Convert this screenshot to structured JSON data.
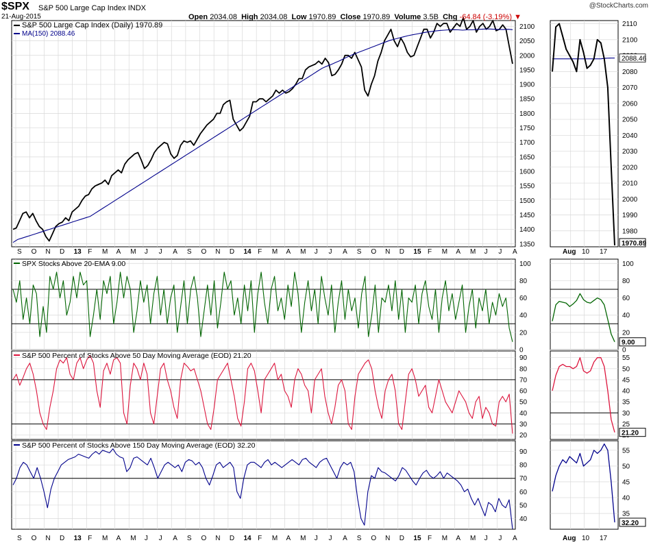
{
  "header": {
    "ticker": "$SPX",
    "name": "S&P 500 Large Cap Index",
    "exchange": "INDX",
    "date": "21-Aug-2015",
    "watermark": "@StockCharts.com",
    "open_label": "Open",
    "open": "2034.08",
    "high_label": "High",
    "high": "2034.08",
    "low_label": "Low",
    "low": "1970.89",
    "close_label": "Close",
    "close": "1970.89",
    "volume_label": "Volume",
    "volume": "3.5B",
    "chg_label": "Chg",
    "chg": "-64.84 (-3.19%)",
    "chg_arrow": "▼"
  },
  "colors": {
    "price": "#000000",
    "ma": "#00008b",
    "ema20": "#006400",
    "above50": "#dc143c",
    "above150": "#00008b",
    "grid": "#d8d8d8",
    "frame": "#000000"
  },
  "x_axis": {
    "labels": [
      "S",
      "O",
      "N",
      "D",
      "13",
      "F",
      "M",
      "A",
      "M",
      "J",
      "J",
      "A",
      "S",
      "O",
      "N",
      "D",
      "14",
      "F",
      "M",
      "A",
      "M",
      "J",
      "J",
      "A",
      "S",
      "O",
      "N",
      "D",
      "15",
      "F",
      "M",
      "A",
      "M",
      "J",
      "J",
      "A"
    ],
    "bold_labels": [
      "13",
      "14",
      "15"
    ],
    "zoom_labels": [
      "Aug",
      "10",
      "17"
    ]
  },
  "chart_data": [
    {
      "type": "line",
      "panel": "price",
      "title": "S&P 500 Large Cap Index (Daily) 1970.89",
      "ylim": [
        1340,
        2120
      ],
      "y_ticks": [
        1350,
        1400,
        1450,
        1500,
        1550,
        1600,
        1650,
        1700,
        1750,
        1800,
        1850,
        1900,
        1950,
        2000,
        2050,
        2100
      ],
      "series": [
        {
          "name": "S&P 500 Large Cap Index (Daily) 1970.89",
          "color": "#000000",
          "values": [
            1400,
            1405,
            1430,
            1455,
            1460,
            1440,
            1455,
            1430,
            1410,
            1400,
            1375,
            1360,
            1385,
            1410,
            1420,
            1425,
            1440,
            1430,
            1460,
            1470,
            1480,
            1500,
            1515,
            1520,
            1540,
            1550,
            1555,
            1560,
            1570,
            1555,
            1585,
            1595,
            1605,
            1595,
            1625,
            1640,
            1650,
            1660,
            1665,
            1640,
            1610,
            1620,
            1640,
            1665,
            1680,
            1690,
            1700,
            1695,
            1660,
            1645,
            1655,
            1690,
            1705,
            1700,
            1705,
            1690,
            1710,
            1730,
            1745,
            1760,
            1770,
            1780,
            1800,
            1800,
            1830,
            1840,
            1845,
            1780,
            1760,
            1740,
            1750,
            1770,
            1790,
            1840,
            1840,
            1850,
            1850,
            1840,
            1850,
            1860,
            1880,
            1870,
            1880,
            1870,
            1875,
            1885,
            1900,
            1920,
            1920,
            1950,
            1960,
            1965,
            1970,
            1980,
            1970,
            1990,
            1975,
            1930,
            1935,
            1950,
            1970,
            2000,
            2000,
            1990,
            2010,
            1985,
            1960,
            1880,
            1860,
            1900,
            1930,
            1980,
            2010,
            2050,
            2070,
            2090,
            2050,
            2030,
            2060,
            2040,
            2010,
            1995,
            2000,
            2030,
            2060,
            2090,
            2090,
            2060,
            2080,
            2110,
            2100,
            2110,
            2110,
            2080,
            2095,
            2110,
            2100,
            2130,
            2090,
            2100,
            2120,
            2080,
            2100,
            2110,
            2090,
            2100,
            2120,
            2085,
            2090,
            2105,
            2090,
            2030,
            1970.89
          ]
        },
        {
          "name": "MA(150) 2088.46",
          "color": "#00008b",
          "values": [
            1355,
            1365,
            1370,
            1375,
            1380,
            1385,
            1390,
            1395,
            1400,
            1405,
            1410,
            1415,
            1420,
            1425,
            1430,
            1435,
            1440,
            1445,
            1455,
            1465,
            1475,
            1485,
            1495,
            1505,
            1515,
            1525,
            1535,
            1545,
            1555,
            1565,
            1575,
            1585,
            1595,
            1605,
            1615,
            1625,
            1635,
            1645,
            1655,
            1665,
            1675,
            1685,
            1695,
            1705,
            1715,
            1725,
            1735,
            1745,
            1755,
            1765,
            1775,
            1785,
            1795,
            1805,
            1815,
            1825,
            1835,
            1845,
            1855,
            1865,
            1875,
            1885,
            1895,
            1905,
            1915,
            1925,
            1935,
            1945,
            1955,
            1962,
            1968,
            1975,
            1982,
            1990,
            1997,
            2004,
            2010,
            2016,
            2022,
            2028,
            2034,
            2040,
            2046,
            2052,
            2056,
            2060,
            2064,
            2068,
            2071,
            2074,
            2077,
            2080,
            2082,
            2084,
            2086,
            2087,
            2088,
            2088.46,
            2088,
            2087,
            2088,
            2088,
            2089,
            2090,
            2091,
            2091,
            2090,
            2089,
            2089,
            2090,
            2088.46
          ]
        }
      ],
      "last_value_label": "1970.89",
      "zoom": {
        "ylim": [
          1970,
          2112
        ],
        "y_ticks": [
          1980,
          1990,
          2000,
          2010,
          2020,
          2030,
          2040,
          2050,
          2060,
          2070,
          2080,
          2090,
          2100,
          2110
        ],
        "price": [
          2080,
          2108,
          2110,
          2102,
          2094,
          2090,
          2086,
          2080,
          2100,
          2092,
          2082,
          2084,
          2088,
          2100,
          2098,
          2088,
          2070,
          2020,
          1970.89
        ],
        "ma": [
          2088,
          2088,
          2088,
          2088,
          2088,
          2088,
          2088,
          2088,
          2088,
          2088,
          2088,
          2088,
          2088,
          2088,
          2088,
          2088.3,
          2088.4,
          2088.46,
          2088.46
        ],
        "ma_label": "2088.46"
      }
    },
    {
      "type": "line",
      "panel": "ema20",
      "title": "SPX Stocks Above 20-EMA 9.00",
      "ylim": [
        0,
        105
      ],
      "y_ticks": [
        0,
        20,
        40,
        60,
        80,
        100
      ],
      "ref_lines": [
        30,
        70
      ],
      "series": [
        {
          "name": "SPX Stocks Above 20-EMA 9.00",
          "color": "#006400",
          "values": [
            70,
            55,
            80,
            35,
            60,
            30,
            75,
            65,
            15,
            50,
            20,
            85,
            70,
            90,
            60,
            80,
            40,
            55,
            85,
            60,
            90,
            75,
            80,
            15,
            40,
            70,
            35,
            80,
            65,
            85,
            30,
            55,
            90,
            60,
            85,
            70,
            20,
            45,
            80,
            55,
            75,
            30,
            65,
            85,
            40,
            70,
            30,
            60,
            75,
            20,
            50,
            80,
            30,
            70,
            85,
            60,
            15,
            45,
            75,
            40,
            80,
            25,
            55,
            90,
            70,
            80,
            40,
            60,
            30,
            75,
            45,
            80,
            20,
            65,
            90,
            55,
            30,
            70,
            85,
            45,
            60,
            35,
            75,
            50,
            90,
            65,
            20,
            55,
            80,
            45,
            70,
            30,
            85,
            60,
            40,
            75,
            20,
            55,
            80,
            35,
            70,
            45,
            60,
            25,
            65,
            85,
            15,
            40,
            75,
            20,
            60,
            55,
            75,
            45,
            80,
            35,
            70,
            20,
            60,
            55,
            75,
            30,
            65,
            80,
            50,
            35,
            70,
            20,
            60,
            80,
            45,
            65,
            35,
            55,
            75,
            20,
            50,
            70,
            25,
            60,
            45,
            70,
            30,
            55,
            40,
            65,
            50,
            60,
            25,
            9
          ]
        }
      ],
      "last_value_label": "9.00",
      "zoom": {
        "ylim": [
          0,
          105
        ],
        "y_ticks": [
          0,
          20,
          40,
          60,
          80,
          100
        ],
        "ref_lines": [
          30,
          70
        ],
        "values": [
          33,
          52,
          56,
          55,
          54,
          50,
          53,
          57,
          65,
          58,
          55,
          54,
          57,
          60,
          58,
          52,
          35,
          18,
          9
        ]
      }
    },
    {
      "type": "line",
      "panel": "above50",
      "title": "S&P 500 Percent of Stocks Above 50 Day Moving Average (EOD) 21.20",
      "ylim": [
        16,
        96
      ],
      "y_ticks": [
        20,
        30,
        40,
        50,
        60,
        70,
        80,
        90
      ],
      "ref_lines": [
        30,
        70
      ],
      "series": [
        {
          "name": "S&P 500 Percent of Stocks Above 50 Day Moving Average (EOD) 21.20",
          "color": "#dc143c",
          "values": [
            70,
            75,
            65,
            72,
            80,
            85,
            75,
            60,
            40,
            30,
            25,
            45,
            60,
            80,
            88,
            85,
            90,
            75,
            70,
            85,
            90,
            80,
            88,
            92,
            85,
            60,
            45,
            78,
            85,
            75,
            88,
            90,
            85,
            40,
            30,
            65,
            85,
            80,
            70,
            85,
            75,
            40,
            30,
            55,
            80,
            85,
            70,
            60,
            45,
            35,
            70,
            85,
            82,
            78,
            80,
            70,
            60,
            45,
            30,
            25,
            45,
            70,
            75,
            80,
            85,
            70,
            55,
            35,
            28,
            50,
            80,
            85,
            78,
            60,
            40,
            70,
            75,
            80,
            85,
            70,
            75,
            60,
            55,
            45,
            70,
            80,
            75,
            65,
            60,
            40,
            70,
            75,
            80,
            55,
            40,
            30,
            45,
            65,
            70,
            60,
            30,
            25,
            55,
            75,
            80,
            85,
            88,
            80,
            60,
            45,
            35,
            60,
            70,
            75,
            60,
            30,
            25,
            50,
            75,
            80,
            70,
            55,
            60,
            65,
            45,
            40,
            55,
            70,
            60,
            50,
            45,
            40,
            50,
            60,
            55,
            50,
            40,
            35,
            50,
            55,
            35,
            45,
            40,
            30,
            28,
            50,
            55,
            50,
            57,
            21.2
          ]
        }
      ],
      "last_value_label": "21.20",
      "zoom": {
        "ylim": [
          18,
          58
        ],
        "y_ticks": [
          20,
          25,
          30,
          35,
          40,
          45,
          50,
          55
        ],
        "ref_lines": [
          30
        ],
        "values": [
          40,
          47,
          51,
          52,
          51,
          51,
          50,
          51,
          55,
          49,
          48,
          49,
          53,
          55,
          55,
          51,
          40,
          27,
          21.2
        ]
      }
    },
    {
      "type": "line",
      "panel": "above150",
      "title": "S&P 500 Percent of Stocks Above 150 Day Moving Average (EOD) 32.20",
      "ylim": [
        32,
        98
      ],
      "y_ticks": [
        40,
        50,
        60,
        70,
        80,
        90
      ],
      "ref_lines": [
        70
      ],
      "series": [
        {
          "name": "S&P 500 Percent of Stocks Above 150 Day Moving Average (EOD) 32.20",
          "color": "#00008b",
          "values": [
            65,
            70,
            78,
            82,
            80,
            75,
            70,
            78,
            70,
            60,
            48,
            62,
            70,
            75,
            80,
            82,
            84,
            85,
            86,
            88,
            87,
            86,
            85,
            88,
            90,
            88,
            91,
            90,
            89,
            92,
            88,
            86,
            85,
            75,
            78,
            85,
            86,
            84,
            82,
            80,
            85,
            78,
            70,
            75,
            80,
            82,
            80,
            78,
            80,
            75,
            82,
            84,
            83,
            80,
            82,
            78,
            70,
            65,
            72,
            80,
            82,
            78,
            80,
            82,
            78,
            60,
            55,
            70,
            80,
            82,
            82,
            80,
            78,
            82,
            84,
            80,
            82,
            80,
            78,
            80,
            82,
            84,
            82,
            80,
            84,
            85,
            82,
            80,
            78,
            82,
            84,
            85,
            80,
            75,
            70,
            78,
            82,
            80,
            82,
            75,
            55,
            40,
            35,
            60,
            72,
            70,
            78,
            75,
            74,
            72,
            70,
            68,
            72,
            78,
            76,
            72,
            68,
            65,
            70,
            74,
            76,
            72,
            70,
            72,
            75,
            70,
            74,
            72,
            70,
            68,
            65,
            60,
            62,
            55,
            50,
            55,
            48,
            42,
            52,
            50,
            45,
            55,
            50,
            48,
            54,
            32.2
          ]
        }
      ],
      "last_value_label": "32.20",
      "zoom": {
        "ylim": [
          30,
          58
        ],
        "y_ticks": [
          35,
          40,
          45,
          50,
          55
        ],
        "ref_lines": [],
        "values": [
          42,
          47,
          50,
          52,
          51,
          53,
          52,
          51,
          54,
          50,
          51,
          52,
          55,
          54,
          55,
          57,
          55,
          45,
          32.2
        ]
      }
    }
  ]
}
